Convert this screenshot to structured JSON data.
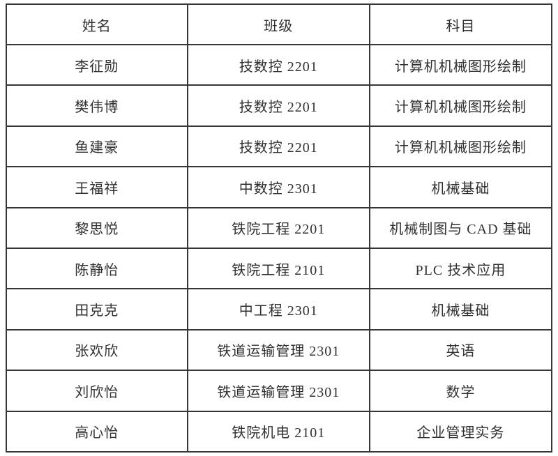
{
  "table": {
    "headers": {
      "name": "姓名",
      "class": "班级",
      "subject": "科目"
    },
    "rows": [
      {
        "name": "李征勋",
        "class": "技数控 2201",
        "subject": "计算机机械图形绘制"
      },
      {
        "name": "樊伟博",
        "class": "技数控 2201",
        "subject": "计算机机械图形绘制"
      },
      {
        "name": "鱼建豪",
        "class": "技数控 2201",
        "subject": "计算机机械图形绘制"
      },
      {
        "name": "王福祥",
        "class": "中数控 2301",
        "subject": "机械基础"
      },
      {
        "name": "黎思悦",
        "class": "铁院工程 2201",
        "subject": "机械制图与 CAD 基础"
      },
      {
        "name": "陈静怡",
        "class": "铁院工程 2101",
        "subject": "PLC 技术应用"
      },
      {
        "name": "田克克",
        "class": "中工程 2301",
        "subject": "机械基础"
      },
      {
        "name": "张欢欣",
        "class": "铁道运输管理 2301",
        "subject": "英语"
      },
      {
        "name": "刘欣怡",
        "class": "铁道运输管理 2301",
        "subject": "数学"
      },
      {
        "name": "高心怡",
        "class": "铁院机电 2101",
        "subject": "企业管理实务"
      }
    ]
  },
  "colors": {
    "border": "#363636",
    "text": "#303030",
    "background": "#ffffff"
  }
}
